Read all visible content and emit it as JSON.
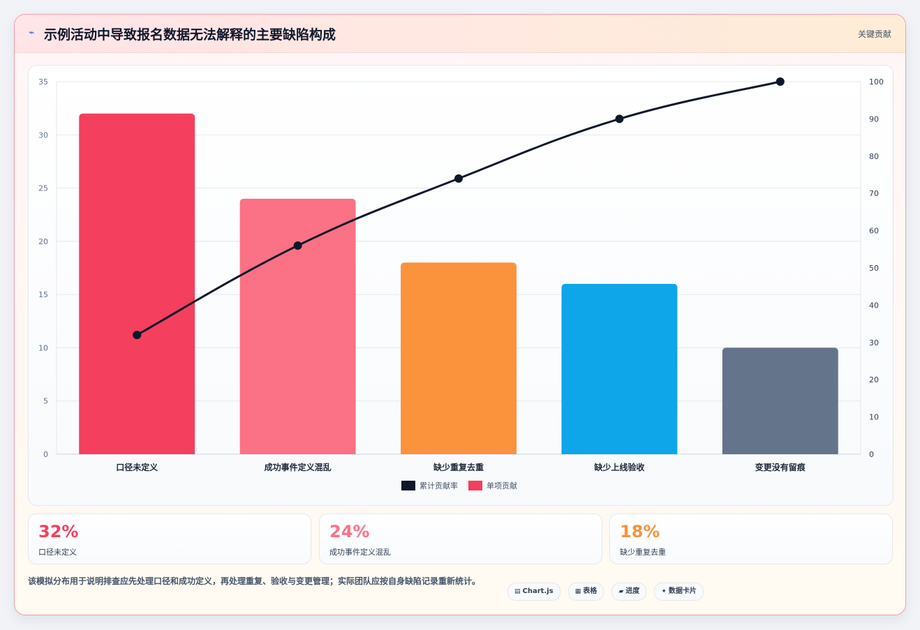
{
  "header": {
    "title": "示例活动中导致报名数据无法解释的主要缺陷构成",
    "icon": "lightning-icon",
    "tag": "关键贡献"
  },
  "chart_data": {
    "type": "bar",
    "categories": [
      "口径未定义",
      "成功事件定义混乱",
      "缺少重复去重",
      "缺少上线验收",
      "变更没有留痕"
    ],
    "series": [
      {
        "name": "累计贡献率",
        "type": "line",
        "axis": "right",
        "color": "#0f172a",
        "values": [
          32,
          56,
          74,
          90,
          100
        ]
      },
      {
        "name": "单项贡献",
        "type": "bar",
        "axis": "left",
        "colors": [
          "#f43f5e",
          "#fb7185",
          "#fb923c",
          "#0ea5e9",
          "#64748b"
        ],
        "values": [
          32,
          24,
          18,
          16,
          10
        ]
      }
    ],
    "ylim": [
      0,
      35
    ],
    "yticks": [
      0,
      5,
      10,
      15,
      20,
      25,
      30,
      35
    ],
    "y2lim": [
      0,
      100
    ],
    "y2ticks": [
      0,
      10,
      20,
      30,
      40,
      50,
      60,
      70,
      80,
      90,
      100
    ],
    "grid": true,
    "legend": "bottom-center",
    "legend_order": [
      "累计贡献率",
      "单项贡献"
    ]
  },
  "stats": [
    {
      "value": "32%",
      "label": "口径未定义",
      "color": "#f43f5e"
    },
    {
      "value": "24%",
      "label": "成功事件定义混乱",
      "color": "#fb7185"
    },
    {
      "value": "18%",
      "label": "缺少重复去重",
      "color": "#fb923c"
    }
  ],
  "footnote": "该模拟分布用于说明排查应先处理口径和成功定义，再处理重复、验收与变更管理；实际团队应按自身缺陷记录重新统计。",
  "pills": [
    {
      "icon": "chart-icon",
      "glyph": "▤",
      "label": "Chart.js"
    },
    {
      "icon": "table-icon",
      "glyph": "▦",
      "label": "表格"
    },
    {
      "icon": "progress-icon",
      "glyph": "▰",
      "label": "进度"
    },
    {
      "icon": "sparkle-icon",
      "glyph": "✦",
      "label": "数据卡片"
    }
  ]
}
